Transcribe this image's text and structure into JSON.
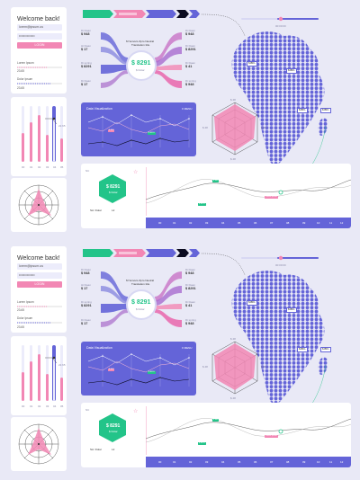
{
  "login": {
    "title": "Welcome back!",
    "email": "lorem@ipsum.us",
    "password": "••••••••••••••",
    "button": "LOGIN",
    "section1": "Lorem Ipsum",
    "value1": "23.65",
    "section2": "Dolor Ipsum",
    "value2": "23.65"
  },
  "bars": {
    "labels": [
      "00",
      "01",
      "02",
      "03",
      "04",
      "05"
    ],
    "tooltip": "22.65"
  },
  "sankey": {
    "title_line1": "M Ververs Zpro Neutral",
    "title_line2": "Translation title",
    "center_price": "$ 8291",
    "center_label": "$ Dolar",
    "left": [
      {
        "label": "Di blaan",
        "value": "$ 948"
      },
      {
        "label": "Hi blaan",
        "value": "$ 17"
      },
      {
        "label": "Di spring",
        "value": "$ 8291"
      },
      {
        "label": "Di blaan",
        "value": "$ 17"
      }
    ],
    "right": [
      {
        "label": "Di blaan",
        "value": "$ 948"
      },
      {
        "label": "Di blaan",
        "value": "$ 8291"
      },
      {
        "label": "Di blaan",
        "value": "$ 41"
      },
      {
        "label": "Di spring",
        "value": "$ 948"
      }
    ]
  },
  "dataviz": {
    "title": "Data Visualization",
    "menu": "≡ MENU",
    "tags": [
      "$ 948",
      "$ 8291"
    ]
  },
  "map": {
    "slider_label": "00:00:00",
    "badges": [
      "$4BFL",
      "$4BFL",
      "$4BFL",
      "$4BFL"
    ]
  },
  "radar": {
    "labels": [
      "$ 48",
      "$ 45",
      "$ 48",
      "$ 48"
    ]
  },
  "timeline": {
    "label": "NC",
    "hex_price": "$ 8291",
    "hex_label": "$ Dolar",
    "legend": [
      "SA: Dolar",
      "L2"
    ],
    "ticks": [
      "00",
      "01",
      "02",
      "03",
      "04",
      "05",
      "06",
      "07",
      "08",
      "09",
      "10",
      "11",
      "12"
    ],
    "tags": [
      "$ 948",
      "$ 8291",
      "Lorem Ipsum"
    ]
  },
  "colors": {
    "primary": "#6464d8",
    "pink": "#f287b4",
    "green": "#23c489",
    "dark": "#0b0b20"
  }
}
